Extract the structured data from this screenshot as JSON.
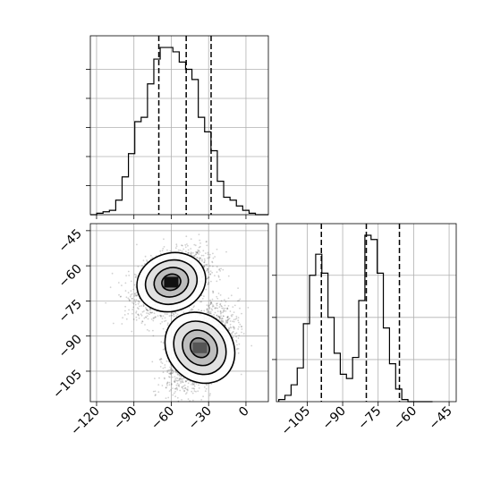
{
  "chart_data": [
    {
      "type": "histogram",
      "panel": "top-left",
      "variable": "x",
      "x_range": [
        -125,
        18
      ],
      "grid": true,
      "x_ticks": [
        -120,
        -90,
        -60,
        -30,
        0
      ],
      "quantile_lines": [
        -70,
        -48,
        -28
      ],
      "bin_edges": [
        -125,
        -119.9,
        -114.8,
        -109.7,
        -104.6,
        -99.5,
        -94.4,
        -89.3,
        -84.2,
        -79.1,
        -74.0,
        -68.9,
        -63.8,
        -58.7,
        -53.6,
        -48.5,
        -43.4,
        -38.3,
        -33.2,
        -28.1,
        -23.0,
        -17.9,
        -12.8,
        -7.7,
        -2.6,
        2.5,
        7.6,
        12.7,
        18
      ],
      "counts": [
        0,
        1,
        2,
        3,
        10,
        26,
        42,
        64,
        67,
        90,
        107,
        115,
        115,
        112,
        105,
        100,
        93,
        67,
        57,
        44,
        23,
        12,
        10,
        6,
        3,
        1,
        0,
        0
      ]
    },
    {
      "type": "scatter-density",
      "panel": "bottom-left",
      "x_variable": "x",
      "y_variable": "y",
      "x_range": [
        -125,
        18
      ],
      "y_range": [
        -118,
        -42
      ],
      "grid": true,
      "x_ticks": [
        -120,
        -90,
        -60,
        -30,
        0
      ],
      "y_ticks": [
        -45,
        -60,
        -75,
        -90,
        -105
      ],
      "clusters": [
        {
          "center_x": -60,
          "center_y": -67,
          "std_x": 14,
          "std_y": 6.5,
          "rho": 0.4,
          "n": 2200
        },
        {
          "center_x": -37,
          "center_y": -95,
          "std_x": 13,
          "std_y": 8.5,
          "rho": 0.5,
          "n": 2200
        }
      ]
    },
    {
      "type": "histogram",
      "panel": "bottom-right",
      "variable": "y",
      "x_range": [
        -118,
        -42
      ],
      "grid": true,
      "x_ticks": [
        -105,
        -90,
        -75,
        -60,
        -45
      ],
      "quantile_lines": [
        -99,
        -80,
        -66
      ],
      "bin_edges": [
        -117,
        -114.4,
        -111.8,
        -109.2,
        -106.6,
        -104,
        -101.4,
        -98.8,
        -96.2,
        -93.6,
        -91,
        -88.4,
        -85.8,
        -83.2,
        -80.6,
        -78,
        -75.4,
        -72.8,
        -70.2,
        -67.6,
        -65,
        -62.4,
        -59.8,
        -57.2,
        -54.6,
        -52
      ],
      "counts": [
        1,
        3,
        8,
        16,
        37,
        60,
        70,
        61,
        40,
        23,
        13,
        11,
        21,
        48,
        79,
        77,
        61,
        35,
        18,
        6,
        1,
        0,
        0,
        0,
        0
      ]
    }
  ]
}
